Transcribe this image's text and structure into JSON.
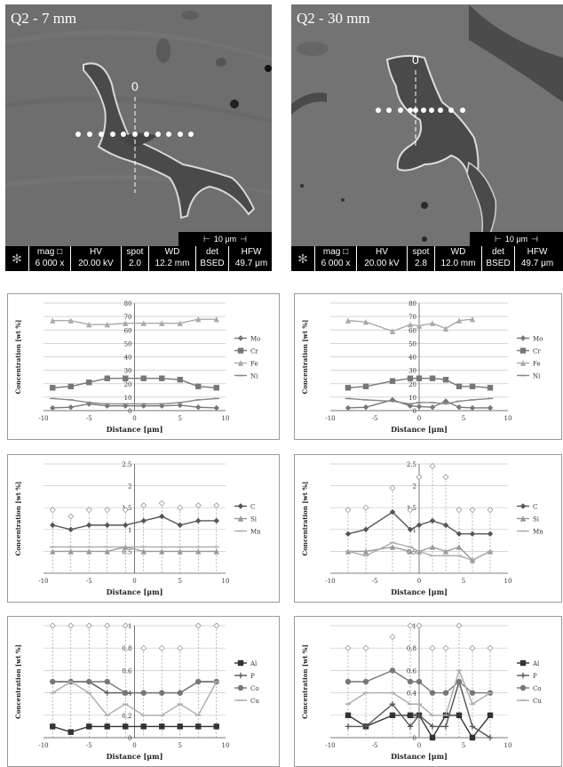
{
  "sem_images": [
    {
      "title": "Q2 - 7 mm",
      "origin_label": "0",
      "scale": "10 μm",
      "info": [
        {
          "k": "mag □",
          "v": "6 000 x"
        },
        {
          "k": "HV",
          "v": "20.00 kV"
        },
        {
          "k": "spot",
          "v": "2.0"
        },
        {
          "k": "WD",
          "v": "12.2 mm"
        },
        {
          "k": "det",
          "v": "BSED"
        },
        {
          "k": "HFW",
          "v": "49.7 μm"
        }
      ]
    },
    {
      "title": "Q2 - 30 mm",
      "origin_label": "0",
      "scale": "10 μm",
      "info": [
        {
          "k": "mag □",
          "v": "6 000 x"
        },
        {
          "k": "HV",
          "v": "20.00 kV"
        },
        {
          "k": "spot",
          "v": "2.8"
        },
        {
          "k": "WD",
          "v": "12.0 mm"
        },
        {
          "k": "det",
          "v": "BSED"
        },
        {
          "k": "HFW",
          "v": "49.7 μm"
        }
      ]
    }
  ],
  "chart_data": [
    {
      "type": "line",
      "xlabel": "Distance [μm]",
      "ylabel": "Concentration [wt %]",
      "xlim": [
        -10,
        10
      ],
      "ylim": [
        0,
        80
      ],
      "xticks": [
        "-10",
        "-5",
        "0",
        "5",
        "10"
      ],
      "yticks": [
        "0",
        "10",
        "20",
        "30",
        "40",
        "50",
        "60",
        "70",
        "80"
      ],
      "series": [
        {
          "name": "Mo",
          "color": "#777777",
          "marker": "diamond",
          "x": [
            -9,
            -7,
            -5,
            -3,
            -1,
            1,
            3,
            5,
            7,
            9
          ],
          "values": [
            2,
            2.5,
            5,
            3.5,
            3.5,
            3.5,
            3.5,
            4,
            2.5,
            2
          ]
        },
        {
          "name": "Cr",
          "color": "#777777",
          "marker": "square",
          "x": [
            -9,
            -7,
            -5,
            -3,
            -1,
            1,
            3,
            5,
            7,
            9
          ],
          "values": [
            17,
            18,
            21,
            24,
            24,
            24,
            24,
            23,
            18,
            17
          ]
        },
        {
          "name": "Fe",
          "color": "#aaaaaa",
          "marker": "triangle",
          "x": [
            -9,
            -7,
            -5,
            -3,
            -1,
            1,
            3,
            5,
            7,
            9
          ],
          "values": [
            67,
            67,
            64,
            64,
            65,
            65,
            65,
            65,
            68,
            68
          ]
        },
        {
          "name": "Ni",
          "color": "#888888",
          "marker": "none",
          "x": [
            -9,
            -7,
            -5,
            -3,
            -1,
            1,
            3,
            5,
            7,
            9
          ],
          "values": [
            9,
            8,
            6,
            5,
            5,
            5,
            5,
            6,
            8,
            9
          ]
        }
      ]
    },
    {
      "type": "line",
      "xlabel": "Distance [μm]",
      "ylabel": "Concentration [wt %]",
      "xlim": [
        -10,
        10
      ],
      "ylim": [
        0,
        80
      ],
      "xticks": [
        "-10",
        "-5",
        "0",
        "5",
        "10"
      ],
      "yticks": [
        "0",
        "10",
        "20",
        "30",
        "40",
        "50",
        "60",
        "70",
        "80"
      ],
      "series": [
        {
          "name": "Mo",
          "color": "#777777",
          "marker": "diamond",
          "x": [
            -8,
            -6,
            -3,
            -1,
            0,
            1.5,
            3,
            4.5,
            6,
            8
          ],
          "values": [
            2,
            2.5,
            8,
            3.5,
            3,
            2.5,
            7,
            2.5,
            2,
            2
          ]
        },
        {
          "name": "Cr",
          "color": "#777777",
          "marker": "square",
          "x": [
            -8,
            -6,
            -3,
            -1,
            0,
            1.5,
            3,
            4.5,
            6,
            8
          ],
          "values": [
            17,
            18,
            22,
            24,
            24,
            24,
            23,
            18,
            18,
            17
          ]
        },
        {
          "name": "Fe",
          "color": "#aaaaaa",
          "marker": "triangle",
          "x": [
            -8,
            -6,
            -3,
            -1,
            0,
            1.5,
            3,
            4.5,
            6
          ],
          "values": [
            67,
            66,
            59,
            64,
            63,
            65,
            61,
            67,
            68
          ]
        },
        {
          "name": "Ni",
          "color": "#888888",
          "marker": "none",
          "x": [
            -8,
            -6,
            -3,
            -1,
            0,
            1.5,
            3,
            4.5,
            6,
            8
          ],
          "values": [
            9,
            8,
            7,
            5,
            6,
            6,
            5,
            7,
            8,
            9
          ]
        }
      ]
    },
    {
      "type": "line",
      "xlabel": "Distance [μm]",
      "ylabel": "Concentration [wt %]",
      "xlim": [
        -10,
        10
      ],
      "ylim": [
        0,
        2.5
      ],
      "xticks": [
        "-10",
        "-5",
        "0",
        "5",
        "10"
      ],
      "yticks": [
        "0.5",
        "1",
        "1.5",
        "2",
        "2.5"
      ],
      "series": [
        {
          "name": "C",
          "color": "#555555",
          "marker": "diamond",
          "x": [
            -9,
            -7,
            -5,
            -3,
            -1,
            1,
            3,
            5,
            7,
            9
          ],
          "values": [
            1.1,
            1,
            1.1,
            1.1,
            1.1,
            1.2,
            1.3,
            1.1,
            1.2,
            1.2
          ]
        },
        {
          "name": "Si",
          "color": "#999999",
          "marker": "triangle",
          "x": [
            -9,
            -7,
            -5,
            -3,
            -1,
            1,
            3,
            5,
            7,
            9
          ],
          "values": [
            0.5,
            0.5,
            0.5,
            0.5,
            0.6,
            0.5,
            0.5,
            0.5,
            0.5,
            0.5
          ]
        },
        {
          "name": "Mn",
          "color": "#aaaaaa",
          "marker": "none",
          "x": [
            -9,
            -7,
            -5,
            -3,
            -1,
            1,
            3,
            5,
            7,
            9
          ],
          "values": [
            0.6,
            0.6,
            0.6,
            0.6,
            0.6,
            0.6,
            0.6,
            0.6,
            0.6,
            0.6
          ]
        }
      ],
      "error_bars": [
        {
          "x": [
            -9,
            -7,
            -5,
            -3,
            -1,
            1,
            3,
            5,
            7,
            9
          ],
          "upper": [
            1.45,
            1.3,
            1.45,
            1.45,
            1.45,
            1.55,
            1.6,
            1.5,
            1.55,
            1.55
          ],
          "lower": [
            0,
            0,
            0,
            0,
            0,
            0,
            0,
            0,
            0,
            0
          ]
        }
      ]
    },
    {
      "type": "line",
      "xlabel": "Distance [μm]",
      "ylabel": "Concentration [wt %]",
      "xlim": [
        -10,
        10
      ],
      "ylim": [
        0,
        2.5
      ],
      "xticks": [
        "-10",
        "-5",
        "0",
        "5",
        "10"
      ],
      "yticks": [
        "0.5",
        "1",
        "1.5",
        "2",
        "2.5"
      ],
      "series": [
        {
          "name": "C",
          "color": "#555555",
          "marker": "diamond",
          "x": [
            -8,
            -6,
            -3,
            -1,
            0,
            1.5,
            3,
            4.5,
            6,
            8
          ],
          "values": [
            0.9,
            1,
            1.4,
            1,
            1.1,
            1.2,
            1.1,
            0.9,
            0.9,
            0.9
          ]
        },
        {
          "name": "Si",
          "color": "#999999",
          "marker": "triangle",
          "x": [
            -8,
            -6,
            -3,
            -1,
            0,
            1.5,
            3,
            4.5,
            6,
            8
          ],
          "values": [
            0.5,
            0.5,
            0.6,
            0.5,
            0.5,
            0.6,
            0.5,
            0.6,
            0.3,
            0.5
          ]
        },
        {
          "name": "Mn",
          "color": "#aaaaaa",
          "marker": "none",
          "x": [
            -8,
            -6,
            -3,
            -1,
            0,
            1.5,
            3,
            4.5,
            6,
            8
          ],
          "values": [
            0.5,
            0.4,
            0.7,
            0.6,
            0.5,
            0.4,
            0.4,
            0.4,
            0.3,
            0.5
          ]
        }
      ],
      "error_bars": [
        {
          "x": [
            -8,
            -6,
            -3,
            -1,
            0,
            1.5,
            3,
            4.5,
            6,
            8
          ],
          "upper": [
            1.45,
            1.5,
            1.95,
            1.45,
            2.2,
            2.45,
            2.2,
            1.45,
            1.45,
            1.45
          ],
          "lower": [
            0,
            0,
            0,
            0,
            0,
            0,
            0,
            0,
            0,
            0
          ]
        }
      ]
    },
    {
      "type": "line",
      "xlabel": "Distance [μm]",
      "ylabel": "Concentration [wt %]",
      "xlim": [
        -10,
        10
      ],
      "ylim": [
        0,
        1
      ],
      "xticks": [
        "-10",
        "-5",
        "0",
        "5",
        "10"
      ],
      "yticks": [
        "0",
        "0.2",
        "0.4",
        "0.6",
        "0.8",
        "1"
      ],
      "series": [
        {
          "name": "Al",
          "color": "#333333",
          "marker": "square",
          "x": [
            -9,
            -7,
            -5,
            -3,
            -1,
            1,
            3,
            5,
            7,
            9
          ],
          "values": [
            0.1,
            0.05,
            0.1,
            0.1,
            0.1,
            0.1,
            0.1,
            0.1,
            0.1,
            0.1
          ]
        },
        {
          "name": "P",
          "color": "#555555",
          "marker": "plus",
          "x": [
            -9,
            -7,
            -5,
            -3,
            -1,
            1,
            3,
            5,
            7,
            9
          ],
          "values": [
            0.5,
            0.5,
            0.5,
            0.4,
            0.4,
            0.4,
            0.4,
            0.4,
            0.5,
            0.5
          ]
        },
        {
          "name": "Co",
          "color": "#777777",
          "marker": "circle",
          "x": [
            -9,
            -7,
            -5,
            -3,
            -1,
            1,
            3,
            5,
            7,
            9
          ],
          "values": [
            0.5,
            0.5,
            0.5,
            0.5,
            0.4,
            0.4,
            0.4,
            0.4,
            0.5,
            0.5
          ]
        },
        {
          "name": "Cu",
          "color": "#aaaaaa",
          "marker": "none",
          "x": [
            -9,
            -7,
            -5,
            -3,
            -1,
            1,
            3,
            5,
            7,
            9
          ],
          "values": [
            0.4,
            0.5,
            0.4,
            0.2,
            0.3,
            0.2,
            0.2,
            0.3,
            0.2,
            0.5
          ]
        }
      ],
      "error_bars": [
        {
          "x": [
            -9,
            -7,
            -5,
            -3,
            -1,
            1,
            3,
            5,
            7,
            9
          ],
          "upper": [
            1,
            1,
            1,
            1,
            1,
            0.8,
            0.8,
            0.8,
            1,
            1
          ],
          "lower": [
            0,
            0,
            0,
            0,
            0,
            0,
            0,
            0,
            0,
            0
          ]
        }
      ]
    },
    {
      "type": "line",
      "xlabel": "Distance [μm]",
      "ylabel": "Concentration [wt %]",
      "xlim": [
        -10,
        10
      ],
      "ylim": [
        0,
        1
      ],
      "xticks": [
        "-10",
        "-5",
        "0",
        "5",
        "10"
      ],
      "yticks": [
        "0",
        "0.2",
        "0.4",
        "0.6",
        "0.8",
        "1"
      ],
      "series": [
        {
          "name": "Al",
          "color": "#333333",
          "marker": "square",
          "x": [
            -8,
            -6,
            -3,
            -1,
            0,
            1.5,
            3,
            4.5,
            6,
            8
          ],
          "values": [
            0.2,
            0.1,
            0.2,
            0.2,
            0.2,
            0,
            0.2,
            0.2,
            0,
            0.2
          ]
        },
        {
          "name": "P",
          "color": "#555555",
          "marker": "plus",
          "x": [
            -8,
            -6,
            -3,
            -1,
            0,
            1.5,
            3,
            4.5,
            6,
            8
          ],
          "values": [
            0.1,
            0.1,
            0.3,
            0.1,
            0.2,
            0.1,
            0.1,
            0.5,
            0.1,
            0
          ]
        },
        {
          "name": "Co",
          "color": "#777777",
          "marker": "circle",
          "x": [
            -8,
            -6,
            -3,
            -1,
            0,
            1.5,
            3,
            4.5,
            6,
            8
          ],
          "values": [
            0.5,
            0.5,
            0.6,
            0.5,
            0.5,
            0.4,
            0.4,
            0.5,
            0.4,
            0.4
          ]
        },
        {
          "name": "Cu",
          "color": "#aaaaaa",
          "marker": "none",
          "x": [
            -8,
            -6,
            -3,
            -1,
            0,
            1.5,
            3,
            4.5,
            6,
            8
          ],
          "values": [
            0.3,
            0.4,
            0.4,
            0.3,
            0.3,
            0.2,
            0.2,
            0.6,
            0.3,
            0.4
          ]
        }
      ],
      "error_bars": [
        {
          "x": [
            -8,
            -6,
            -3,
            -1,
            0,
            1.5,
            3,
            4.5,
            6,
            8
          ],
          "upper": [
            0.8,
            0.8,
            0.9,
            1,
            1,
            0.8,
            0.8,
            1,
            0.8,
            0.8
          ],
          "lower": [
            0,
            0,
            0,
            0,
            0,
            0,
            0,
            0,
            0,
            0
          ]
        }
      ]
    }
  ]
}
